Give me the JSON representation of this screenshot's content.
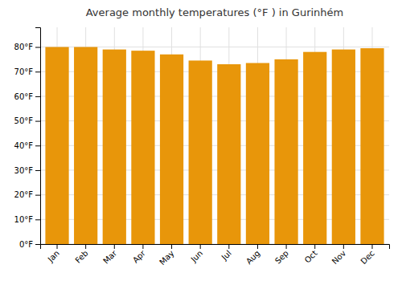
{
  "chart_data": {
    "type": "bar",
    "title": "Average monthly temperatures (°F ) in Gurinhém",
    "categories": [
      "Jan",
      "Feb",
      "Mar",
      "Apr",
      "May",
      "Jun",
      "Jul",
      "Aug",
      "Sep",
      "Oct",
      "Nov",
      "Dec"
    ],
    "values": [
      80,
      80,
      79,
      78.5,
      77,
      74.5,
      73,
      73.5,
      75,
      78,
      79,
      79.5
    ],
    "color": "#E8960A",
    "ylim": [
      0,
      88
    ],
    "yticks": [
      {
        "value": 0,
        "label": "0°F"
      },
      {
        "value": 10,
        "label": "10°F"
      },
      {
        "value": 20,
        "label": "20°F"
      },
      {
        "value": 30,
        "label": "30°F"
      },
      {
        "value": 40,
        "label": "40°F"
      },
      {
        "value": 50,
        "label": "50°F"
      },
      {
        "value": 60,
        "label": "60°F"
      },
      {
        "value": 70,
        "label": "70°F"
      },
      {
        "value": 80,
        "label": "80°F"
      }
    ],
    "grid": true
  }
}
